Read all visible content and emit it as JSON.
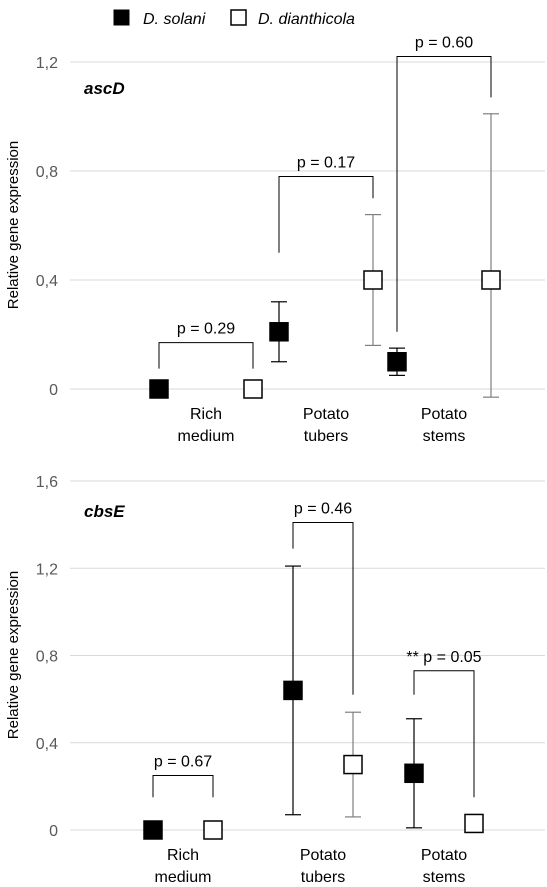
{
  "legend": {
    "items": [
      {
        "name": "D. solani",
        "fill": "#000000"
      },
      {
        "name": "D. dianthicola",
        "fill": "#ffffff"
      }
    ],
    "placement": "top"
  },
  "chart_data": [
    {
      "type": "scatter",
      "title": "ascD",
      "ylabel": "Relative gene expression",
      "ylim": [
        0,
        1.2
      ],
      "yticks": [
        "0",
        "0,4",
        "0,8",
        "1,2"
      ],
      "categories": [
        "Rich medium",
        "Potato tubers",
        "Potato stems"
      ],
      "category_lines": [
        [
          "Rich",
          "medium"
        ],
        [
          "Potato",
          "tubers"
        ],
        [
          "Potato",
          "stems"
        ]
      ],
      "grid": true,
      "series": [
        {
          "name": "D. solani",
          "values": [
            0.0,
            0.21,
            0.1
          ],
          "err_low": [
            0.0,
            0.1,
            0.05
          ],
          "err_high": [
            0.0,
            0.32,
            0.15
          ]
        },
        {
          "name": "D. dianthicola",
          "values": [
            0.0,
            0.4,
            0.4
          ],
          "err_low": [
            0.0,
            0.16,
            -0.03
          ],
          "err_high": [
            0.0,
            0.64,
            1.01
          ]
        }
      ],
      "annotations": [
        {
          "text": "p = 0.29",
          "category": 0,
          "left_y": 0.075,
          "right_y": 0.075,
          "top_y": 0.17
        },
        {
          "text": "p = 0.17",
          "category": 1,
          "left_y": 0.5,
          "right_y": 0.7,
          "top_y": 0.78
        },
        {
          "text": "p = 0.60",
          "category": 2,
          "left_y": 0.21,
          "right_y": 1.07,
          "top_y": 1.22
        }
      ]
    },
    {
      "type": "scatter",
      "title": "cbsE",
      "ylabel": "Relative gene expression",
      "ylim": [
        0,
        1.6
      ],
      "yticks": [
        "0",
        "0,4",
        "0,8",
        "1,2",
        "1,6"
      ],
      "categories": [
        "Rich medium",
        "Potato tubers",
        "Potato stems"
      ],
      "category_lines": [
        [
          "Rich",
          "medium"
        ],
        [
          "Potato",
          "tubers"
        ],
        [
          "Potato",
          "stems"
        ]
      ],
      "grid": true,
      "series": [
        {
          "name": "D. solani",
          "values": [
            0.0,
            0.64,
            0.26
          ],
          "err_low": [
            0.0,
            0.07,
            0.01
          ],
          "err_high": [
            0.0,
            1.21,
            0.51
          ]
        },
        {
          "name": "D. dianthicola",
          "values": [
            0.0,
            0.3,
            0.03
          ],
          "err_low": [
            0.0,
            0.06,
            0.03
          ],
          "err_high": [
            0.0,
            0.54,
            0.03
          ]
        }
      ],
      "annotations": [
        {
          "text": "p = 0.67",
          "category": 0,
          "left_y": 0.15,
          "right_y": 0.15,
          "top_y": 0.25
        },
        {
          "text": "p = 0.46",
          "category": 1,
          "left_y": 1.29,
          "right_y": 0.62,
          "top_y": 1.41
        },
        {
          "text": "** p = 0.05",
          "category": 2,
          "left_y": 0.62,
          "right_y": 0.15,
          "top_y": 0.73
        }
      ]
    }
  ]
}
